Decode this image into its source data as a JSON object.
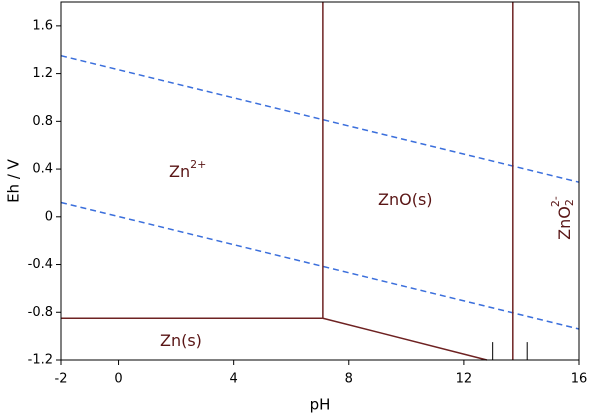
{
  "chart_data": {
    "type": "line",
    "x_label": "pH",
    "y_label": "Eh / V",
    "xlim": [
      -2,
      16
    ],
    "ylim": [
      -1.2,
      1.8
    ],
    "xticks": [
      -2,
      0,
      4,
      8,
      12,
      16
    ],
    "yticks": [
      -1.2,
      -0.8,
      -0.4,
      0,
      0.4,
      0.8,
      1.2,
      1.6
    ],
    "series": [
      {
        "color": "#3b6fdc",
        "dashed": true,
        "x": [
          -2,
          16
        ],
        "values": [
          1.35,
          0.29
        ]
      },
      {
        "color": "#3b6fdc",
        "dashed": true,
        "x": [
          -2,
          16
        ],
        "values": [
          0.12,
          -0.94
        ]
      },
      {
        "color": "#6e2222",
        "dashed": false,
        "x": [
          -2,
          7.1
        ],
        "values": [
          -0.85,
          -0.85
        ]
      },
      {
        "color": "#6e2222",
        "dashed": false,
        "x": [
          7.1,
          12.8
        ],
        "values": [
          -0.85,
          -1.2
        ]
      },
      {
        "color": "#6e2222",
        "dashed": false,
        "x": [
          7.1,
          7.1
        ],
        "values": [
          -0.85,
          1.8
        ]
      },
      {
        "color": "#6e2222",
        "dashed": false,
        "x": [
          13.7,
          13.7
        ],
        "values": [
          -1.2,
          1.8
        ]
      },
      {
        "color": "#000000",
        "dashed": false,
        "x": [
          13,
          13
        ],
        "values": [
          -1.2,
          -1.05
        ]
      },
      {
        "color": "#000000",
        "dashed": false,
        "x": [
          14.2,
          14.2
        ],
        "values": [
          -1.2,
          -1.05
        ]
      }
    ],
    "annotations": [
      {
        "text": "Zn",
        "sup": "2+"
      },
      {
        "text": "ZnO(s)"
      },
      {
        "text": "ZnO",
        "sub": "2",
        "sup": "2-"
      },
      {
        "text": "Zn(s)"
      }
    ]
  }
}
